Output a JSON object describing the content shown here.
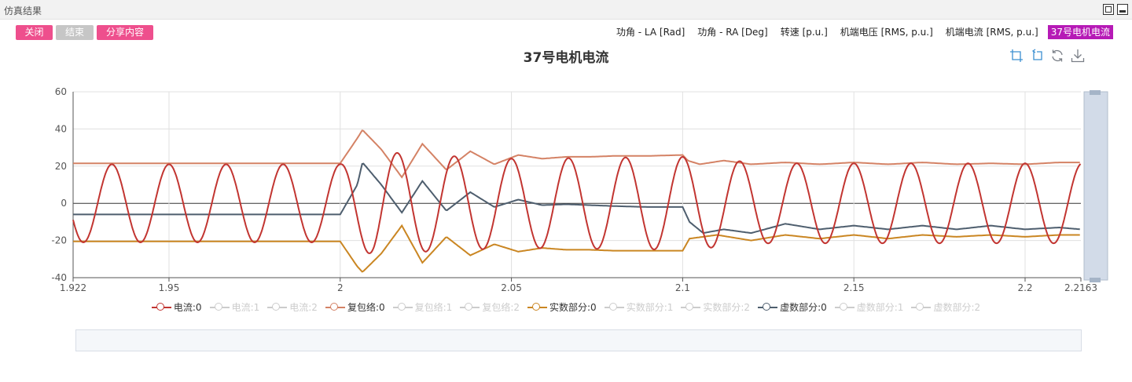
{
  "window": {
    "title": "仿真结果"
  },
  "toolbar": {
    "close_label": "关闭",
    "end_label": "结束",
    "share_label": "分享内容"
  },
  "tabs": [
    {
      "label": "功角 - LA [Rad]"
    },
    {
      "label": "功角 - RA [Deg]"
    },
    {
      "label": "转速 [p.u.]"
    },
    {
      "label": "机端电压 [RMS, p.u.]"
    },
    {
      "label": "机端电流 [RMS, p.u.]"
    },
    {
      "label": "37号电机电流",
      "active": true
    }
  ],
  "toolbox": [
    "zoom-icon",
    "zoom-reset-icon",
    "restore-icon",
    "save-image-icon"
  ],
  "legend": [
    {
      "label": "电流:0",
      "color": "#c23531",
      "active": true
    },
    {
      "label": "电流:1",
      "color": "#cccccc",
      "active": false
    },
    {
      "label": "电流:2",
      "color": "#cccccc",
      "active": false
    },
    {
      "label": "复包络:0",
      "color": "#d48265",
      "active": true
    },
    {
      "label": "复包络:1",
      "color": "#cccccc",
      "active": false
    },
    {
      "label": "复包络:2",
      "color": "#cccccc",
      "active": false
    },
    {
      "label": "实数部分:0",
      "color": "#ca8622",
      "active": true
    },
    {
      "label": "实数部分:1",
      "color": "#cccccc",
      "active": false
    },
    {
      "label": "实数部分:2",
      "color": "#cccccc",
      "active": false
    },
    {
      "label": "虚数部分:0",
      "color": "#4e5e6e",
      "active": true
    },
    {
      "label": "虚数部分:1",
      "color": "#cccccc",
      "active": false
    },
    {
      "label": "虚数部分:2",
      "color": "#cccccc",
      "active": false
    }
  ],
  "chart_data": {
    "type": "line",
    "title": "37号电机电流",
    "xlabel": "",
    "ylabel": "",
    "xlim": [
      1.922,
      2.2163
    ],
    "ylim": [
      -40,
      60
    ],
    "x_ticks": [
      1.922,
      1.95,
      2,
      2.05,
      2.1,
      2.15,
      2.2,
      2.2163
    ],
    "x_tick_labels": [
      "1.922",
      "1.95",
      "2",
      "2.05",
      "2.1",
      "2.15",
      "2.2",
      "2.2163"
    ],
    "y_ticks": [
      -40,
      -20,
      0,
      20,
      40,
      60
    ],
    "grid": true,
    "legend_position": "bottom",
    "fault_start": 2.0,
    "fault_clear": 2.1,
    "series": [
      {
        "name": "电流:0",
        "color": "#c23531",
        "frequency_hz": 60,
        "x": [
          1.922,
          2.0,
          2.01,
          2.025,
          2.05,
          2.075,
          2.1,
          2.125,
          2.15,
          2.2163
        ],
        "amplitude": [
          21,
          21,
          28,
          26,
          24,
          24.5,
          25,
          21.5,
          21.5,
          21.5
        ]
      },
      {
        "name": "复包络:0",
        "color": "#d48265",
        "x": [
          1.922,
          1.95,
          2.0,
          2.005,
          2.0065,
          2.012,
          2.018,
          2.024,
          2.031,
          2.038,
          2.045,
          2.052,
          2.059,
          2.066,
          2.073,
          2.08,
          2.09,
          2.1,
          2.1015,
          2.105,
          2.112,
          2.12,
          2.13,
          2.14,
          2.15,
          2.16,
          2.17,
          2.18,
          2.19,
          2.2,
          2.21,
          2.2163
        ],
        "y": [
          21.5,
          21.5,
          21.5,
          35,
          39.5,
          29,
          14,
          32,
          18,
          28,
          21,
          26,
          24,
          25,
          25,
          25.5,
          25.5,
          26,
          23,
          21,
          23,
          21,
          22,
          21,
          22,
          21,
          22,
          21,
          21.5,
          21,
          22,
          22
        ]
      },
      {
        "name": "实数部分:0",
        "color": "#ca8622",
        "x": [
          1.922,
          1.95,
          2.0,
          2.005,
          2.0065,
          2.012,
          2.018,
          2.024,
          2.031,
          2.038,
          2.045,
          2.052,
          2.059,
          2.066,
          2.073,
          2.08,
          2.09,
          2.1,
          2.102,
          2.11,
          2.12,
          2.13,
          2.14,
          2.15,
          2.16,
          2.17,
          2.18,
          2.19,
          2.2,
          2.21,
          2.2163
        ],
        "y": [
          -20.5,
          -20.5,
          -20.5,
          -34,
          -37,
          -27,
          -12,
          -32,
          -18,
          -28,
          -22,
          -26,
          -24,
          -25,
          -25,
          -25.5,
          -25.5,
          -25.5,
          -19,
          -17,
          -20,
          -17,
          -19,
          -17,
          -19,
          -17,
          -18,
          -17,
          -18,
          -17,
          -17
        ]
      },
      {
        "name": "虚数部分:0",
        "color": "#4e5e6e",
        "x": [
          1.922,
          1.95,
          2.0,
          2.005,
          2.0065,
          2.012,
          2.018,
          2.024,
          2.031,
          2.038,
          2.045,
          2.052,
          2.059,
          2.066,
          2.073,
          2.08,
          2.09,
          2.1,
          2.102,
          2.106,
          2.112,
          2.12,
          2.13,
          2.14,
          2.15,
          2.16,
          2.17,
          2.18,
          2.19,
          2.2,
          2.21,
          2.2163
        ],
        "y": [
          -6,
          -6,
          -6,
          10,
          22,
          10,
          -5,
          12,
          -4,
          6,
          -2,
          2,
          -1,
          -0.5,
          -1,
          -1.5,
          -2,
          -2,
          -10,
          -16,
          -14,
          -16,
          -11,
          -14,
          -12,
          -14,
          -12,
          -14,
          -12,
          -14,
          -13,
          -14
        ]
      }
    ]
  }
}
